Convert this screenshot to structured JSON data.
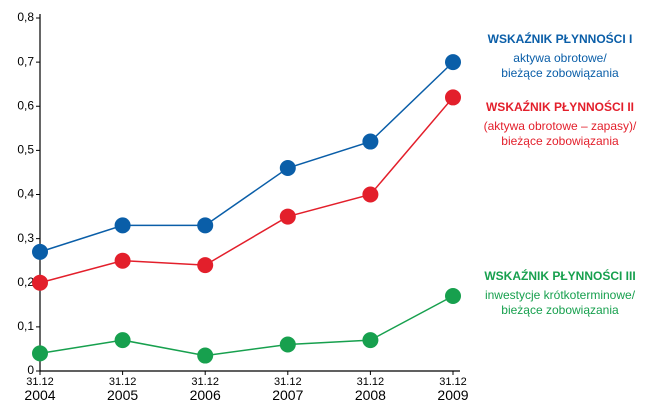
{
  "chart_data": {
    "type": "line",
    "categories": [
      "31.12\n2004",
      "31.12\n2005",
      "31.12\n2006",
      "31.12\n2007",
      "31.12\n2008",
      "31.12\n2009"
    ],
    "series": [
      {
        "name": "WSKAŹNIK PŁYNNOŚCI I",
        "color": "#0a5ea8",
        "description": [
          "aktywa obrotowe/",
          "bieżące zobowiązania"
        ],
        "values": [
          0.27,
          0.33,
          0.33,
          0.46,
          0.52,
          0.7
        ]
      },
      {
        "name": "WSKAŹNIK PŁYNNOŚCI II",
        "color": "#e31f2b",
        "description": [
          "(aktywa obrotowe – zapasy)/",
          "bieżące zobowiązania"
        ],
        "values": [
          0.2,
          0.25,
          0.24,
          0.35,
          0.4,
          0.62
        ]
      },
      {
        "name": "WSKAŹNIK PŁYNNOŚCI III",
        "color": "#17a04e",
        "description": [
          "inwestycje krótkoterminowe/",
          "bieżące zobowiązania"
        ],
        "values": [
          0.04,
          0.07,
          0.035,
          0.06,
          0.07,
          0.17
        ]
      }
    ],
    "ylim": [
      0,
      0.8
    ],
    "yticks": [
      0,
      {
        "value": 0.1,
        "label": "0,1"
      },
      {
        "value": 0.2,
        "label": "0,2"
      },
      {
        "value": 0.3,
        "label": "0,3"
      },
      {
        "value": 0.4,
        "label": "0,4"
      },
      {
        "value": 0.5,
        "label": "0,5"
      },
      {
        "value": 0.6,
        "label": "0,6"
      },
      {
        "value": 0.7,
        "label": "0,7"
      },
      {
        "value": 0.8,
        "label": "0,8"
      }
    ],
    "grid": false
  }
}
